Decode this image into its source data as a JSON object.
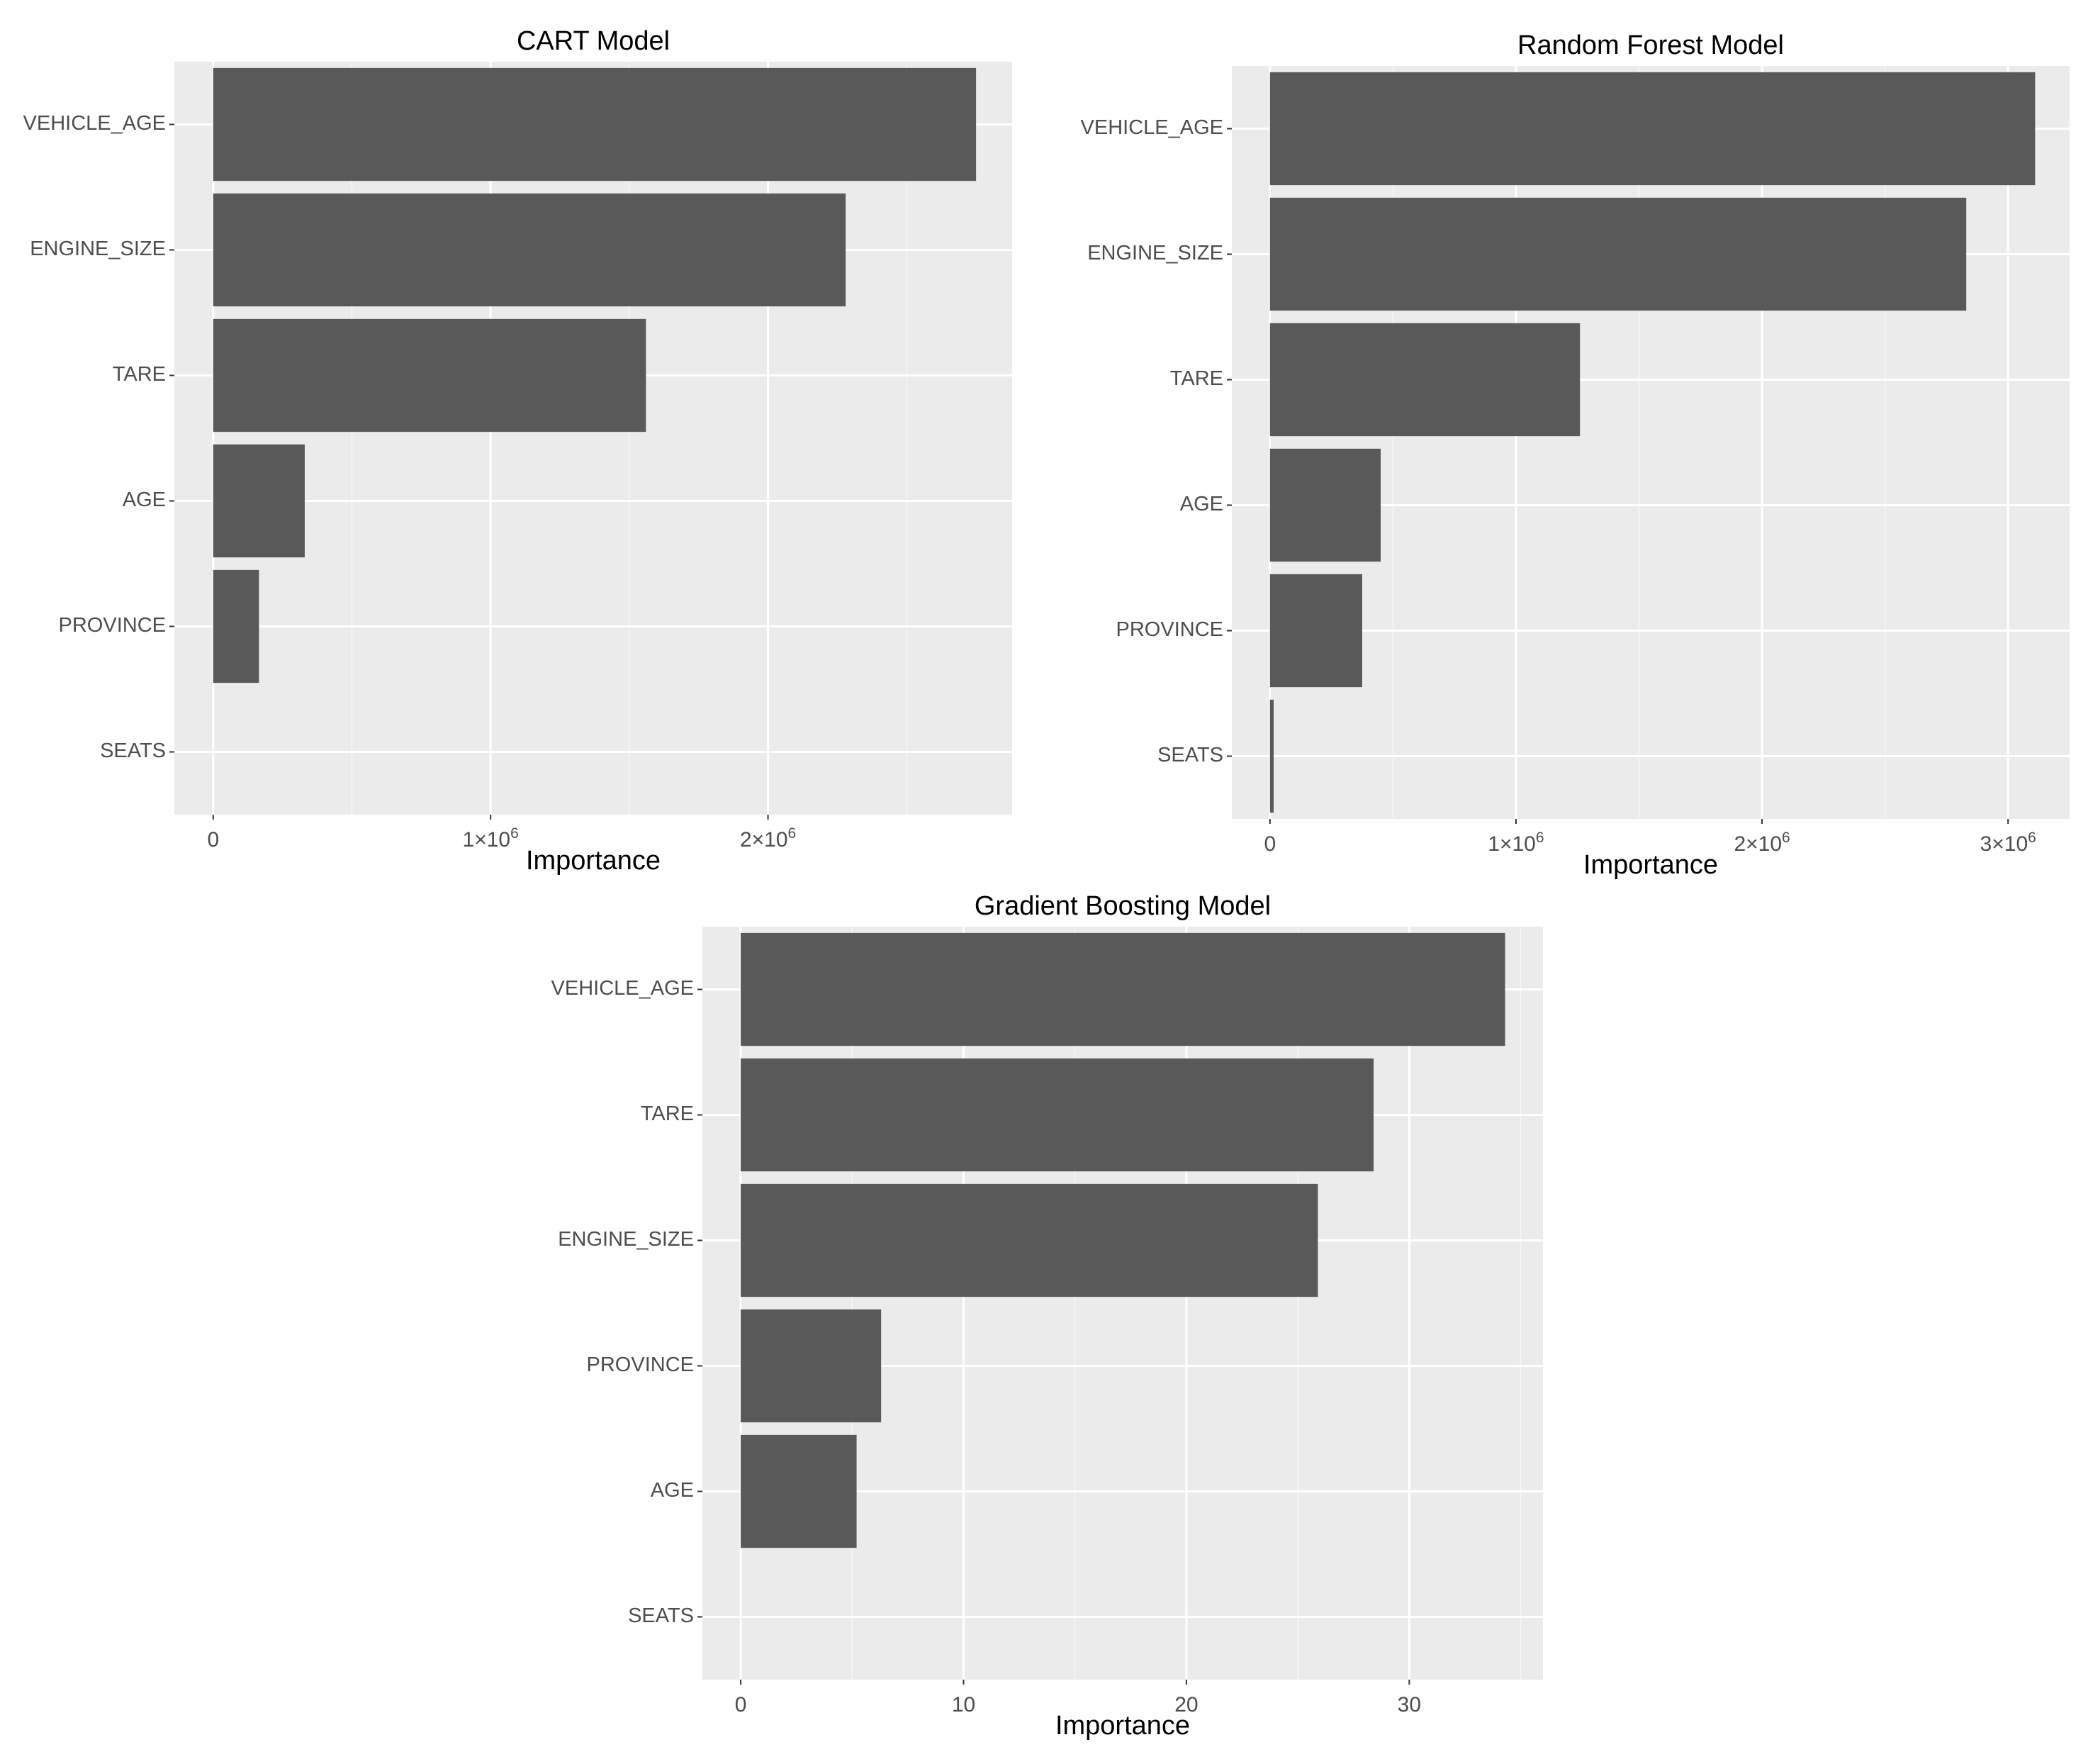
{
  "chart_data": [
    {
      "type": "bar",
      "orientation": "horizontal",
      "title": "CART Model",
      "xlabel": "Importance",
      "ylabel": "",
      "categories": [
        "VEHICLE_AGE",
        "ENGINE_SIZE",
        "TARE",
        "AGE",
        "PROVINCE",
        "SEATS"
      ],
      "values": [
        2750000,
        2280000,
        1560000,
        330000,
        165000,
        0
      ],
      "xlim": [
        -140000,
        2880000
      ],
      "xticks": [
        {
          "value": 0,
          "base": "0",
          "sup": ""
        },
        {
          "value": 1000000,
          "base": "1×10",
          "sup": "6"
        },
        {
          "value": 2000000,
          "base": "2×10",
          "sup": "6"
        }
      ],
      "minor_ticks": [
        500000,
        1500000,
        2500000
      ],
      "grid": true,
      "bar_color": "#595959",
      "panel_color": "#ebebeb",
      "grid_color": "#ffffff"
    },
    {
      "type": "bar",
      "orientation": "horizontal",
      "title": "Random Forest Model",
      "xlabel": "Importance",
      "ylabel": "",
      "categories": [
        "VEHICLE_AGE",
        "ENGINE_SIZE",
        "TARE",
        "AGE",
        "PROVINCE",
        "SEATS"
      ],
      "values": [
        3110000,
        2830000,
        1260000,
        450000,
        375000,
        15000
      ],
      "xlim": [
        -155000,
        3250000
      ],
      "xticks": [
        {
          "value": 0,
          "base": "0",
          "sup": ""
        },
        {
          "value": 1000000,
          "base": "1×10",
          "sup": "6"
        },
        {
          "value": 2000000,
          "base": "2×10",
          "sup": "6"
        },
        {
          "value": 3000000,
          "base": "3×10",
          "sup": "6"
        }
      ],
      "minor_ticks": [
        500000,
        1500000,
        2500000
      ],
      "grid": true,
      "bar_color": "#595959",
      "panel_color": "#ebebeb",
      "grid_color": "#ffffff"
    },
    {
      "type": "bar",
      "orientation": "horizontal",
      "title": "Gradient Boosting Model",
      "xlabel": "Importance",
      "ylabel": "",
      "categories": [
        "VEHICLE_AGE",
        "TARE",
        "ENGINE_SIZE",
        "PROVINCE",
        "AGE",
        "SEATS"
      ],
      "values": [
        34.3,
        28.4,
        25.9,
        6.3,
        5.2,
        0
      ],
      "xlim": [
        -1.72,
        36.0
      ],
      "xticks": [
        {
          "value": 0,
          "base": "0",
          "sup": ""
        },
        {
          "value": 10,
          "base": "10",
          "sup": ""
        },
        {
          "value": 20,
          "base": "20",
          "sup": ""
        },
        {
          "value": 30,
          "base": "30",
          "sup": ""
        }
      ],
      "minor_ticks": [
        5,
        15,
        25,
        35
      ],
      "grid": true,
      "bar_color": "#595959",
      "panel_color": "#ebebeb",
      "grid_color": "#ffffff"
    }
  ]
}
